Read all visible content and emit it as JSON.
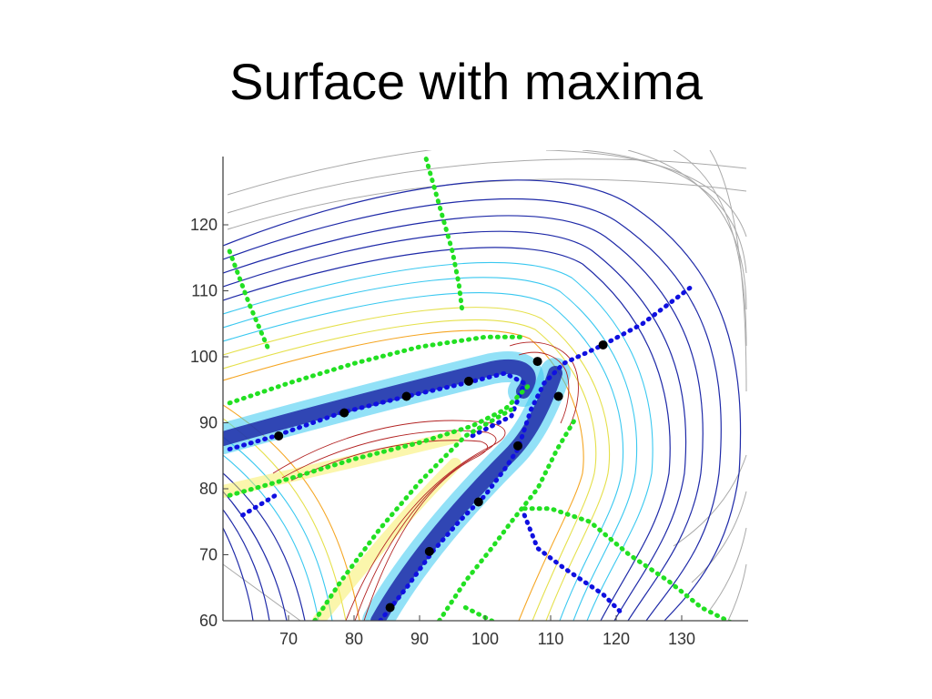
{
  "slide": {
    "title": "Surface with maxima"
  },
  "colors": {
    "background": "#ffffff",
    "axis": "#444444",
    "far_contour": "#999999",
    "low_contour": "#1f2aa8",
    "ridge_core": "#1f2aa8",
    "cyan_band": "#39c8f0",
    "yellow_band": "#f7ee5a",
    "orange_band": "#f5a623",
    "peak_contour": "#b22222",
    "maxima_points": "#000000",
    "blue_path": "#1010e0",
    "green_path": "#22e022"
  },
  "chart_data": {
    "type": "contour",
    "title": "Surface with maxima",
    "xlabel": "",
    "ylabel": "",
    "xlim": [
      60,
      140
    ],
    "ylim": [
      60,
      130
    ],
    "xticks": [
      70,
      80,
      90,
      100,
      110,
      120,
      130
    ],
    "yticks": [
      60,
      70,
      80,
      90,
      100,
      110,
      120
    ],
    "grid": false,
    "series": [
      {
        "kind": "maxima",
        "points": [
          {
            "x": 68.5,
            "y": 88
          },
          {
            "x": 78.5,
            "y": 91.5
          },
          {
            "x": 88,
            "y": 94
          },
          {
            "x": 97.5,
            "y": 96.3
          },
          {
            "x": 108,
            "y": 99.3
          },
          {
            "x": 111.2,
            "y": 94
          },
          {
            "x": 105,
            "y": 86.5
          },
          {
            "x": 99,
            "y": 78
          },
          {
            "x": 91.5,
            "y": 70.5
          },
          {
            "x": 85.5,
            "y": 62
          },
          {
            "x": 118,
            "y": 101.8
          }
        ]
      },
      {
        "kind": "ridge",
        "color": "blue",
        "paths": [
          [
            [
              61,
              86
            ],
            [
              68,
              88
            ],
            [
              78,
              91.5
            ],
            [
              88,
              94
            ],
            [
              97,
              96
            ],
            [
              103,
              97.5
            ],
            [
              106,
              96
            ],
            [
              104,
              91
            ],
            [
              98,
              88
            ]
          ],
          [
            [
              84,
              60
            ],
            [
              88,
              65
            ],
            [
              92,
              70.5
            ],
            [
              96,
              75
            ],
            [
              100,
              79
            ],
            [
              103,
              83
            ],
            [
              105,
              86
            ],
            [
              107,
              92
            ],
            [
              109,
              96
            ],
            [
              112,
              99
            ],
            [
              118,
              101.8
            ],
            [
              124,
              105
            ],
            [
              132,
              111
            ]
          ],
          [
            [
              106,
              76
            ],
            [
              108,
              71
            ],
            [
              112,
              68
            ],
            [
              118,
              64
            ],
            [
              121,
              61
            ]
          ],
          [
            [
              63,
              76
            ],
            [
              68,
              79
            ]
          ]
        ]
      },
      {
        "kind": "valley",
        "color": "green",
        "paths": [
          [
            [
              91,
              130
            ],
            [
              93,
              123
            ],
            [
              95,
              116
            ],
            [
              96,
              111
            ],
            [
              96.5,
              107
            ]
          ],
          [
            [
              61,
              116
            ],
            [
              64,
              108
            ],
            [
              67,
              101
            ]
          ],
          [
            [
              61,
              93
            ],
            [
              70,
              96
            ],
            [
              80,
              99
            ],
            [
              90,
              101.5
            ],
            [
              100,
              103
            ],
            [
              106,
              103
            ]
          ],
          [
            [
              61,
              79
            ],
            [
              70,
              81.5
            ],
            [
              80,
              84.5
            ],
            [
              90,
              87
            ],
            [
              98,
              89.5
            ],
            [
              103,
              92
            ],
            [
              107,
              96
            ]
          ],
          [
            [
              74,
              60
            ],
            [
              78,
              66
            ],
            [
              84,
              74
            ],
            [
              90,
              81
            ],
            [
              97,
              88
            ],
            [
              104,
              92
            ]
          ],
          [
            [
              93,
              60
            ],
            [
              97,
              66
            ],
            [
              101,
              71
            ],
            [
              104,
              75
            ],
            [
              108,
              80
            ],
            [
              111,
              86
            ],
            [
              114,
              91
            ]
          ],
          [
            [
              106,
              77
            ],
            [
              110,
              77
            ],
            [
              116,
              75
            ],
            [
              122,
              70
            ],
            [
              128,
              66
            ],
            [
              133,
              62
            ],
            [
              139,
              59
            ]
          ],
          [
            [
              97,
              62
            ],
            [
              105,
              58
            ]
          ]
        ]
      }
    ]
  }
}
